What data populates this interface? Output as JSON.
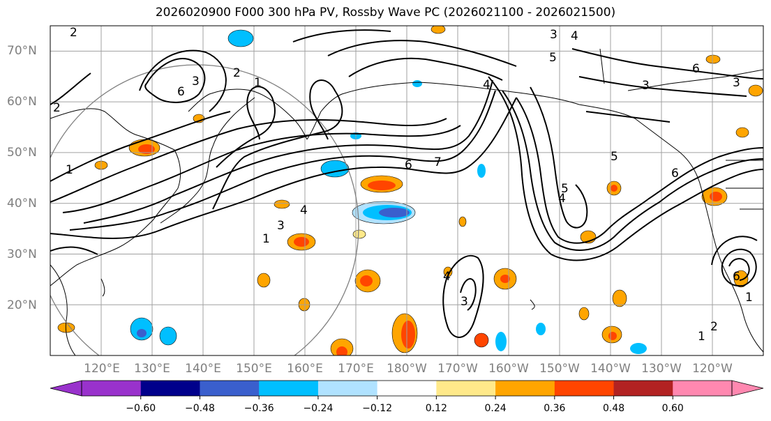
{
  "title": "2026020900 F000 300 hPa PV, Rossby Wave PC (2026021100 - 2026021500)",
  "map": {
    "lon_range_deg_east": [
      110,
      250
    ],
    "lat_range_deg_north": [
      10,
      75
    ],
    "lat_ticks": [
      "70°N",
      "60°N",
      "50°N",
      "40°N",
      "30°N",
      "20°N"
    ],
    "lon_ticks": [
      "120°E",
      "130°E",
      "140°E",
      "150°E",
      "160°E",
      "170°E",
      "180°W",
      "170°W",
      "160°W",
      "150°W",
      "140°W",
      "130°W",
      "120°W"
    ],
    "contour_labels": [
      "2",
      "2",
      "3",
      "4",
      "5",
      "6",
      "3",
      "1",
      "6",
      "3",
      "2",
      "1",
      "1",
      "3",
      "4",
      "4",
      "6",
      "7",
      "5",
      "4",
      "5",
      "6",
      "4",
      "3",
      "6",
      "1",
      "2",
      "1",
      "3"
    ],
    "colors": {
      "ocean": "#ffffff",
      "grid": "#a0a0a0",
      "coast": "#000000",
      "contour": "#000000",
      "circle": "#808080"
    }
  },
  "colorbar": {
    "colors": [
      "#9932cc",
      "#00008b",
      "#3a5fcd",
      "#00bfff",
      "#b0e2ff",
      "#ffffff",
      "#ffe98a",
      "#ffa500",
      "#ff4500",
      "#b22222",
      "#ff88b0"
    ],
    "tick_labels": [
      "−0.60",
      "−0.48",
      "−0.36",
      "−0.24",
      "−0.12",
      "0.12",
      "0.24",
      "0.36",
      "0.48",
      "0.60"
    ]
  }
}
